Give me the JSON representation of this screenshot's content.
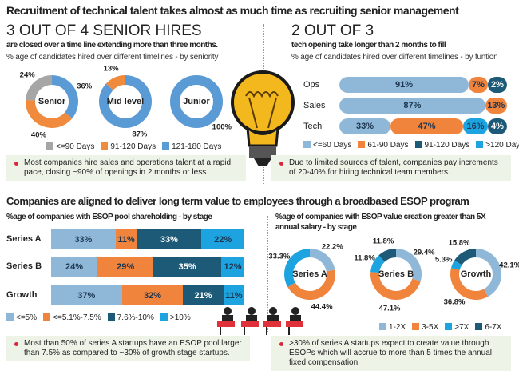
{
  "title": "Recruitment of technical talent takes almost as much time as recruiting senior management",
  "left": {
    "headline": "3 OUT OF 4 SENIOR HIRES",
    "subhead": "are closed over a time line extending more than three months.",
    "caption": "% age of candidates hired over different timelines -  by seniority",
    "note": "Most companies hire sales and operations talent at a rapid pace, closing ~90% of openings in 2 months or less"
  },
  "right": {
    "headline": "2 OUT OF 3",
    "subhead": "tech opening take longer than 2 months to fill",
    "caption": "% age of candidates hired over different timelines -  by funtion",
    "note": "Due to limited sources of talent, companies pay increments of 20-40% for hiring technical team members."
  },
  "section2_title": "Companies are aligned to deliver long term value to employees through a broadbased ESOP program",
  "esop_left": {
    "caption": "%age of companies with ESOP pool shareholding - by stage",
    "note": "Most than 50% of series A startups have an ESOP pool larger than 7.5% as compared to ~30% of growth stage startups."
  },
  "esop_right": {
    "caption1": "%age of companies with ESOP value creation greater than 5X",
    "caption2": "annual salary - by stage",
    "note": ">30% of series A startups expect to create value through ESOPs which will accrue to more than 5 times the annual fixed compensation."
  },
  "chart_data": [
    {
      "type": "donut",
      "legend": [
        {
          "label": "<=90 Days",
          "color": "#a6a6a6"
        },
        {
          "label": "91-120 Days",
          "color": "#f08a3c"
        },
        {
          "label": "121-180 Days",
          "color": "#5b9bd5"
        }
      ],
      "donuts": [
        {
          "label": "Senior",
          "values": [
            {
              "k": 2,
              "v": 36,
              "t": "36%"
            },
            {
              "k": 1,
              "v": 40,
              "t": "40%"
            },
            {
              "k": 0,
              "v": 24,
              "t": "24%"
            }
          ]
        },
        {
          "label": "Mid level",
          "values": [
            {
              "k": 2,
              "v": 87,
              "t": "87%"
            },
            {
              "k": 1,
              "v": 13,
              "t": "13%"
            }
          ]
        },
        {
          "label": "Junior",
          "values": [
            {
              "k": 2,
              "v": 100,
              "t": "100%"
            }
          ]
        }
      ]
    },
    {
      "type": "stacked-bar",
      "legend": [
        {
          "label": "<=60 Days",
          "color": "#8fb8d8"
        },
        {
          "label": "61-90 Days",
          "color": "#f0843c"
        },
        {
          "label": "91-120 Days",
          "color": "#1d5a78"
        },
        {
          "label": ">120 Days",
          "color": "#1ca3e0"
        }
      ],
      "rows": [
        {
          "label": "Ops",
          "values": [
            {
              "k": 0,
              "v": 91
            },
            {
              "k": 1,
              "v": 7
            },
            {
              "k": 2,
              "v": 2
            }
          ]
        },
        {
          "label": "Sales",
          "values": [
            {
              "k": 0,
              "v": 87
            },
            {
              "k": 1,
              "v": 13
            }
          ]
        },
        {
          "label": "Tech",
          "values": [
            {
              "k": 0,
              "v": 33
            },
            {
              "k": 1,
              "v": 47
            },
            {
              "k": 3,
              "v": 16
            },
            {
              "k": 2,
              "v": 4
            }
          ]
        }
      ]
    },
    {
      "type": "stacked-bar",
      "legend": [
        {
          "label": "<=5%",
          "color": "#8fb8d8"
        },
        {
          "label": "<=5.1%-7.5%",
          "color": "#f0843c"
        },
        {
          "label": "7.6%-10%",
          "color": "#1d5a78"
        },
        {
          "label": ">10%",
          "color": "#1ca3e0"
        }
      ],
      "rows": [
        {
          "label": "Series A",
          "values": [
            {
              "k": 0,
              "v": 33
            },
            {
              "k": 1,
              "v": 11
            },
            {
              "k": 2,
              "v": 33
            },
            {
              "k": 3,
              "v": 22
            }
          ]
        },
        {
          "label": "Series B",
          "values": [
            {
              "k": 0,
              "v": 24
            },
            {
              "k": 1,
              "v": 29
            },
            {
              "k": 2,
              "v": 35
            },
            {
              "k": 3,
              "v": 12
            }
          ]
        },
        {
          "label": "Growth",
          "values": [
            {
              "k": 0,
              "v": 37
            },
            {
              "k": 1,
              "v": 32
            },
            {
              "k": 2,
              "v": 21
            },
            {
              "k": 3,
              "v": 11
            }
          ]
        }
      ]
    },
    {
      "type": "donut",
      "legend": [
        {
          "label": "1-2X",
          "color": "#8fb8d8"
        },
        {
          "label": "3-5X",
          "color": "#f0843c"
        },
        {
          "label": ">7X",
          "color": "#1ca3e0"
        },
        {
          "label": "6-7X",
          "color": "#1d5a78"
        }
      ],
      "donuts": [
        {
          "label": "Series A",
          "values": [
            {
              "k": 0,
              "v": 22.2,
              "t": "22.2%"
            },
            {
              "k": 1,
              "v": 44.4,
              "t": "44.4%"
            },
            {
              "k": 2,
              "v": 33.3,
              "t": "33.3%"
            }
          ]
        },
        {
          "label": "Series B",
          "values": [
            {
              "k": 0,
              "v": 29.4,
              "t": "29.4%"
            },
            {
              "k": 1,
              "v": 47.1,
              "t": "47.1%"
            },
            {
              "k": 2,
              "v": 11.8,
              "t": "11.8%"
            },
            {
              "k": 3,
              "v": 11.8,
              "t": "11.8%"
            }
          ]
        },
        {
          "label": "Growth",
          "values": [
            {
              "k": 0,
              "v": 42.1,
              "t": "42.1%"
            },
            {
              "k": 1,
              "v": 36.8,
              "t": "36.8%"
            },
            {
              "k": 2,
              "v": 5.3,
              "t": "5.3%"
            },
            {
              "k": 3,
              "v": 15.8,
              "t": "15.8%"
            }
          ]
        }
      ]
    }
  ]
}
